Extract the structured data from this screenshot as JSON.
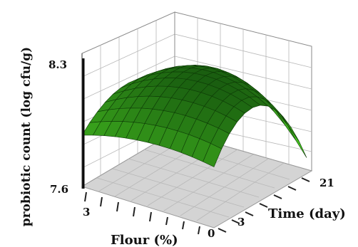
{
  "chart_data": {
    "type": "surface3d",
    "title": "",
    "zlabel": "probiotic count (log cfu/g)",
    "xlabel": "Flour (%)",
    "ylabel": "Time (day)",
    "z_tick_labels": [
      "7.6",
      "8.3"
    ],
    "x_tick_labels": [
      "3",
      "0"
    ],
    "y_tick_labels": [
      "3",
      "21"
    ],
    "x_range": [
      0,
      3
    ],
    "y_range": [
      0,
      21
    ],
    "z_range": [
      7.6,
      8.3
    ],
    "grid": true,
    "surface_color": "#33cc22",
    "floor_color": "#d4d4d4",
    "surface_points": [
      {
        "flour": 3,
        "day": 0,
        "count": 7.87
      },
      {
        "flour": 3,
        "day": 10.5,
        "count": 8.0
      },
      {
        "flour": 3,
        "day": 21,
        "count": 7.84
      },
      {
        "flour": 1.5,
        "day": 0,
        "count": 7.94
      },
      {
        "flour": 1.5,
        "day": 10.5,
        "count": 8.16
      },
      {
        "flour": 1.5,
        "day": 21,
        "count": 7.96
      },
      {
        "flour": 0,
        "day": 0,
        "count": 7.92
      },
      {
        "flour": 0,
        "day": 10.5,
        "count": 8.1
      },
      {
        "flour": 0,
        "day": 21,
        "count": 7.68
      }
    ]
  }
}
